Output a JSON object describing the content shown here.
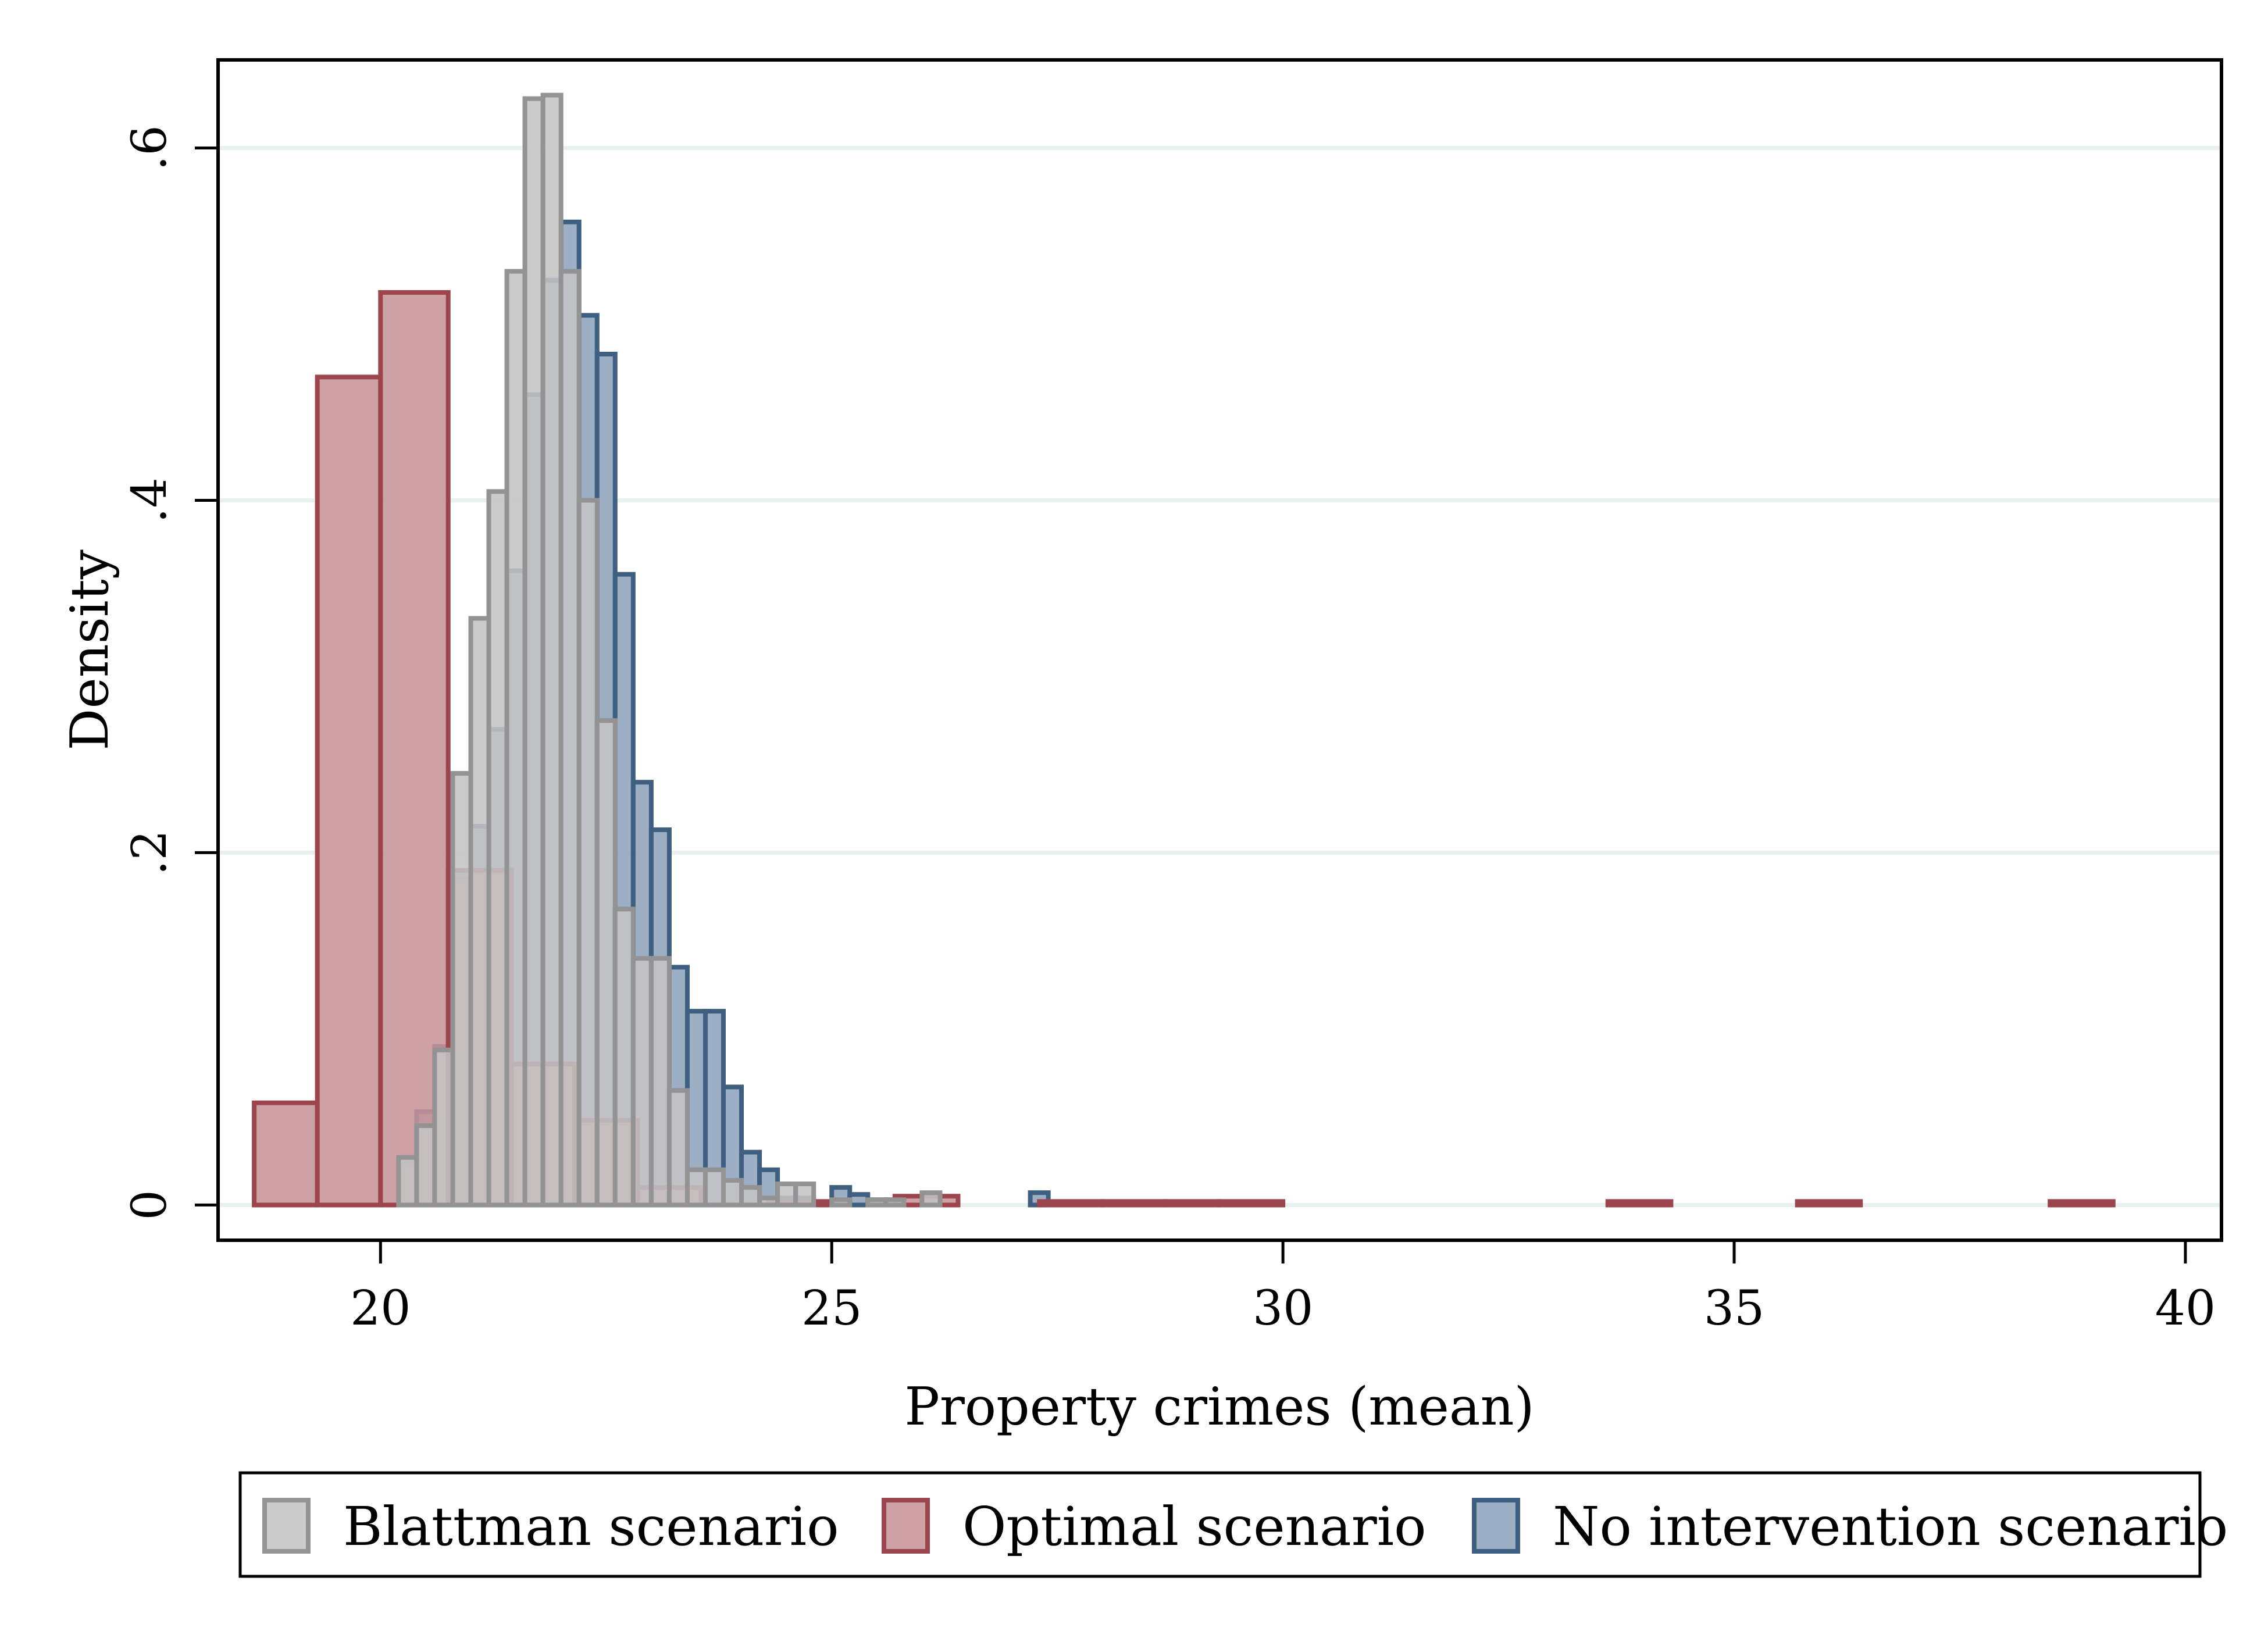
{
  "chart_data": {
    "type": "histogram",
    "title": "",
    "xlabel": "Property crimes (mean)",
    "ylabel": "Density",
    "xlim": [
      18.2,
      40.4
    ],
    "ylim": [
      -0.02,
      0.65
    ],
    "x_ticks": [
      20,
      25,
      30,
      35,
      40
    ],
    "x_tick_labels": [
      "20",
      "25",
      "30",
      "35",
      "40"
    ],
    "y_ticks": [
      0,
      0.2,
      0.4,
      0.6
    ],
    "y_tick_labels": [
      "0",
      ".2",
      ".4",
      ".6"
    ],
    "grid": "horizontal",
    "legend_position": "bottom",
    "series": [
      {
        "name": "No intervention scenario",
        "fill": "#90a4bd",
        "stroke": "#3e5f80",
        "bins": [
          {
            "x0": 20.2,
            "x1": 20.4,
            "y": 0.023
          },
          {
            "x0": 20.4,
            "x1": 20.6,
            "y": 0.053
          },
          {
            "x0": 20.6,
            "x1": 20.8,
            "y": 0.09
          },
          {
            "x0": 20.8,
            "x1": 21.0,
            "y": 0.185
          },
          {
            "x0": 21.0,
            "x1": 21.2,
            "y": 0.215
          },
          {
            "x0": 21.2,
            "x1": 21.4,
            "y": 0.27
          },
          {
            "x0": 21.4,
            "x1": 21.6,
            "y": 0.36
          },
          {
            "x0": 21.6,
            "x1": 21.8,
            "y": 0.46
          },
          {
            "x0": 21.8,
            "x1": 22.0,
            "y": 0.525
          },
          {
            "x0": 22.0,
            "x1": 22.2,
            "y": 0.558
          },
          {
            "x0": 22.2,
            "x1": 22.4,
            "y": 0.505
          },
          {
            "x0": 22.4,
            "x1": 22.6,
            "y": 0.483
          },
          {
            "x0": 22.6,
            "x1": 22.8,
            "y": 0.358
          },
          {
            "x0": 22.8,
            "x1": 23.0,
            "y": 0.24
          },
          {
            "x0": 23.0,
            "x1": 23.2,
            "y": 0.213
          },
          {
            "x0": 23.2,
            "x1": 23.4,
            "y": 0.135
          },
          {
            "x0": 23.4,
            "x1": 23.6,
            "y": 0.11
          },
          {
            "x0": 23.6,
            "x1": 23.8,
            "y": 0.11
          },
          {
            "x0": 23.8,
            "x1": 24.0,
            "y": 0.067
          },
          {
            "x0": 24.0,
            "x1": 24.2,
            "y": 0.03
          },
          {
            "x0": 24.2,
            "x1": 24.4,
            "y": 0.02
          },
          {
            "x0": 24.4,
            "x1": 24.6,
            "y": 0.004
          },
          {
            "x0": 24.6,
            "x1": 24.8,
            "y": 0.004
          },
          {
            "x0": 25.0,
            "x1": 25.2,
            "y": 0.01
          },
          {
            "x0": 25.2,
            "x1": 25.4,
            "y": 0.006
          },
          {
            "x0": 25.4,
            "x1": 25.6,
            "y": 0.003
          },
          {
            "x0": 25.6,
            "x1": 25.8,
            "y": 0.003
          },
          {
            "x0": 26.0,
            "x1": 26.2,
            "y": 0.006
          },
          {
            "x0": 27.2,
            "x1": 27.4,
            "y": 0.007
          }
        ]
      },
      {
        "name": "Optimal scenario",
        "fill": "#c79499",
        "stroke": "#9c454c",
        "bins": [
          {
            "x0": 18.6,
            "x1": 19.3,
            "y": 0.058
          },
          {
            "x0": 19.3,
            "x1": 20.0,
            "y": 0.47
          },
          {
            "x0": 20.0,
            "x1": 20.75,
            "y": 0.518
          },
          {
            "x0": 20.75,
            "x1": 21.45,
            "y": 0.19
          },
          {
            "x0": 21.45,
            "x1": 22.15,
            "y": 0.08
          },
          {
            "x0": 22.15,
            "x1": 22.85,
            "y": 0.048
          },
          {
            "x0": 22.85,
            "x1": 23.55,
            "y": 0.01
          },
          {
            "x0": 24.3,
            "x1": 25.0,
            "y": 0.002
          },
          {
            "x0": 25.7,
            "x1": 26.4,
            "y": 0.005
          },
          {
            "x0": 27.3,
            "x1": 28.0,
            "y": 0.002
          },
          {
            "x0": 28.0,
            "x1": 28.7,
            "y": 0.002
          },
          {
            "x0": 28.7,
            "x1": 29.3,
            "y": 0.002
          },
          {
            "x0": 29.3,
            "x1": 30.0,
            "y": 0.002
          },
          {
            "x0": 33.6,
            "x1": 34.3,
            "y": 0.002
          },
          {
            "x0": 35.7,
            "x1": 36.4,
            "y": 0.002
          },
          {
            "x0": 38.5,
            "x1": 39.2,
            "y": 0.002
          }
        ]
      },
      {
        "name": "Blattman scenario",
        "fill": "#c4c4c4",
        "stroke": "#939393",
        "bins": [
          {
            "x0": 20.2,
            "x1": 20.4,
            "y": 0.027
          },
          {
            "x0": 20.4,
            "x1": 20.6,
            "y": 0.045
          },
          {
            "x0": 20.6,
            "x1": 20.8,
            "y": 0.088
          },
          {
            "x0": 20.8,
            "x1": 21.0,
            "y": 0.245
          },
          {
            "x0": 21.0,
            "x1": 21.2,
            "y": 0.333
          },
          {
            "x0": 21.2,
            "x1": 21.4,
            "y": 0.405
          },
          {
            "x0": 21.4,
            "x1": 21.6,
            "y": 0.53
          },
          {
            "x0": 21.6,
            "x1": 21.8,
            "y": 0.628
          },
          {
            "x0": 21.8,
            "x1": 22.0,
            "y": 0.63
          },
          {
            "x0": 22.0,
            "x1": 22.2,
            "y": 0.53
          },
          {
            "x0": 22.2,
            "x1": 22.4,
            "y": 0.4
          },
          {
            "x0": 22.4,
            "x1": 22.6,
            "y": 0.275
          },
          {
            "x0": 22.6,
            "x1": 22.8,
            "y": 0.168
          },
          {
            "x0": 22.8,
            "x1": 23.0,
            "y": 0.14
          },
          {
            "x0": 23.0,
            "x1": 23.2,
            "y": 0.14
          },
          {
            "x0": 23.2,
            "x1": 23.4,
            "y": 0.065
          },
          {
            "x0": 23.4,
            "x1": 23.6,
            "y": 0.02
          },
          {
            "x0": 23.6,
            "x1": 23.8,
            "y": 0.02
          },
          {
            "x0": 23.8,
            "x1": 24.0,
            "y": 0.014
          },
          {
            "x0": 24.0,
            "x1": 24.2,
            "y": 0.01
          },
          {
            "x0": 24.2,
            "x1": 24.4,
            "y": 0.004
          },
          {
            "x0": 24.4,
            "x1": 24.6,
            "y": 0.012
          },
          {
            "x0": 24.6,
            "x1": 24.8,
            "y": 0.012
          },
          {
            "x0": 25.0,
            "x1": 25.2,
            "y": 0.003
          },
          {
            "x0": 25.4,
            "x1": 25.6,
            "y": 0.003
          },
          {
            "x0": 25.6,
            "x1": 25.8,
            "y": 0.003
          },
          {
            "x0": 26.0,
            "x1": 26.2,
            "y": 0.007
          }
        ]
      }
    ],
    "legend": [
      {
        "name": "Blattman scenario",
        "fill": "#c4c4c4",
        "stroke": "#939393"
      },
      {
        "name": "Optimal scenario",
        "fill": "#c79499",
        "stroke": "#9c454c"
      },
      {
        "name": "No intervention scenario",
        "fill": "#90a4bd",
        "stroke": "#3e5f80"
      }
    ]
  }
}
